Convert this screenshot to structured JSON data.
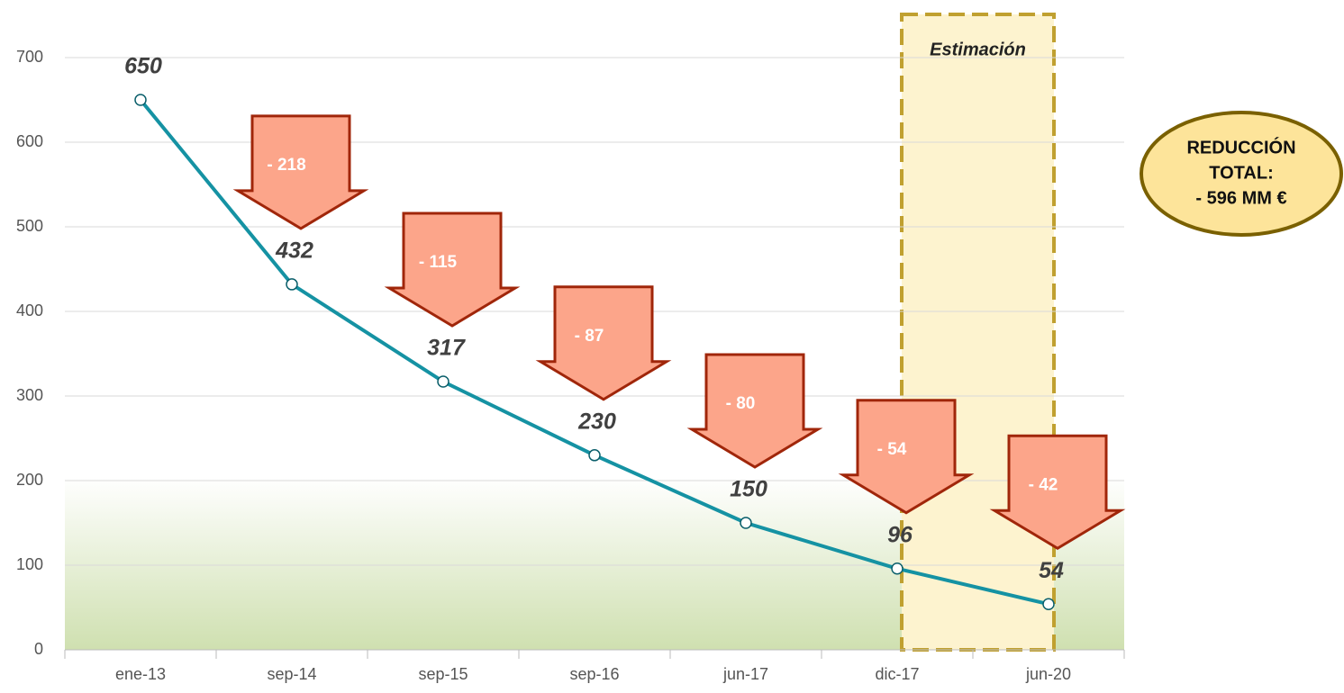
{
  "chart_data": {
    "type": "line",
    "categories": [
      "ene-13",
      "sep-14",
      "sep-15",
      "sep-16",
      "jun-17",
      "dic-17",
      "jun-20"
    ],
    "values": [
      650,
      432,
      317,
      230,
      150,
      96,
      54
    ],
    "color": "#1592a3",
    "ylim": [
      0,
      700
    ],
    "yticks": [
      0,
      100,
      200,
      300,
      400,
      500,
      600,
      700
    ],
    "grid": true,
    "changes": [
      "- 218",
      "- 115",
      "- 87",
      "- 80",
      "- 54",
      "- 42"
    ],
    "estimation": {
      "label": "Estimación",
      "from": "dic-17",
      "to": "jun-20"
    },
    "total_box": [
      "REDUCCIÓN",
      "TOTAL:",
      "- 596 MM €"
    ]
  }
}
